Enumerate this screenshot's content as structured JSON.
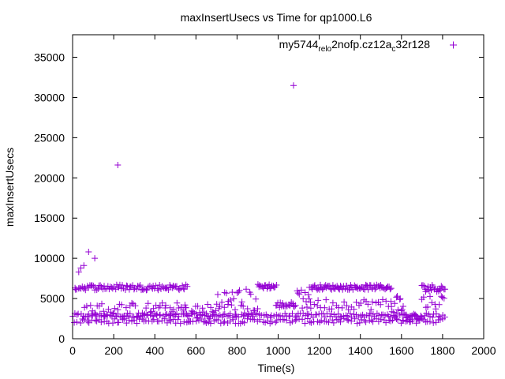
{
  "chart_data": {
    "type": "scatter",
    "title": "maxInsertUsecs vs Time for qp1000.L6",
    "xlabel": "Time(s)",
    "ylabel": "maxInsertUsecs",
    "xlim": [
      0,
      2000
    ],
    "ylim": [
      0,
      37800
    ],
    "x_ticks": [
      0,
      200,
      400,
      600,
      800,
      1000,
      1200,
      1400,
      1600,
      1800,
      2000
    ],
    "y_ticks": [
      0,
      5000,
      10000,
      15000,
      20000,
      25000,
      30000,
      35000
    ],
    "grid": false,
    "legend_position": "top-right",
    "marker": "+",
    "series": [
      {
        "name": "my5744_rel_o2nofp.cz12a_c32r128",
        "legend_parts": [
          {
            "text": "my5744",
            "sub": false
          },
          {
            "text": "rel",
            "sub": true
          },
          {
            "text": "o",
            "sub": true
          },
          {
            "text": "2nofp.cz12a",
            "sub": false
          },
          {
            "text": "c",
            "sub": true
          },
          {
            "text": "32r128",
            "sub": false
          }
        ],
        "color": "#9400d3",
        "outliers": [
          [
            220,
            21600
          ],
          [
            1075,
            31500
          ],
          [
            78,
            10800
          ],
          [
            108,
            10000
          ],
          [
            40,
            8800
          ],
          [
            55,
            9100
          ],
          [
            30,
            8300
          ]
        ],
        "bands": [
          {
            "x_start": 0,
            "x_end": 1810,
            "level": 2900,
            "jitter": 250,
            "step": 10
          },
          {
            "x_start": 0,
            "x_end": 1810,
            "level": 2200,
            "jitter": 300,
            "step": 12
          },
          {
            "x_start": 10,
            "x_end": 560,
            "level": 6400,
            "jitter": 350,
            "step": 6
          },
          {
            "x_start": 60,
            "x_end": 560,
            "level": 3600,
            "jitter": 900,
            "step": 9
          },
          {
            "x_start": 540,
            "x_end": 700,
            "level": 3200,
            "jitter": 1200,
            "step": 7
          },
          {
            "x_start": 700,
            "x_end": 900,
            "level": 4500,
            "jitter": 1800,
            "step": 6
          },
          {
            "x_start": 900,
            "x_end": 990,
            "level": 6500,
            "jitter": 300,
            "step": 5
          },
          {
            "x_start": 990,
            "x_end": 1070,
            "level": 4200,
            "jitter": 350,
            "step": 5
          },
          {
            "x_start": 1075,
            "x_end": 1160,
            "level": 5200,
            "jitter": 1400,
            "step": 6
          },
          {
            "x_start": 1160,
            "x_end": 1550,
            "level": 6400,
            "jitter": 300,
            "step": 5
          },
          {
            "x_start": 1150,
            "x_end": 1550,
            "level": 4300,
            "jitter": 700,
            "step": 12
          },
          {
            "x_start": 1550,
            "x_end": 1610,
            "level": 4200,
            "jitter": 1500,
            "step": 5
          },
          {
            "x_start": 1610,
            "x_end": 1700,
            "level": 2600,
            "jitter": 600,
            "step": 6
          },
          {
            "x_start": 1700,
            "x_end": 1810,
            "level": 6300,
            "jitter": 450,
            "step": 5
          },
          {
            "x_start": 1700,
            "x_end": 1810,
            "level": 4600,
            "jitter": 900,
            "step": 10
          }
        ]
      }
    ]
  }
}
